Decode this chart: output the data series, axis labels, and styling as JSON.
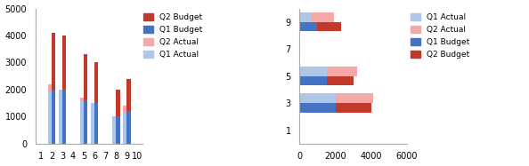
{
  "vertical": {
    "categories": [
      1,
      2,
      3,
      4,
      5,
      6,
      7,
      8,
      9,
      10
    ],
    "q1_actual": [
      0,
      1900,
      2000,
      0,
      1600,
      1500,
      0,
      1000,
      1100,
      0
    ],
    "q2_actual_top": [
      0,
      2200,
      2000,
      0,
      1700,
      1500,
      0,
      1000,
      1400,
      0
    ],
    "q1_budget": [
      0,
      2000,
      2000,
      0,
      1600,
      1500,
      0,
      1000,
      1200,
      0
    ],
    "q2_budget_top": [
      0,
      4100,
      4000,
      0,
      3300,
      3000,
      0,
      2000,
      2400,
      0
    ],
    "ylim": [
      0,
      5000
    ],
    "yticks": [
      0,
      1000,
      2000,
      3000,
      4000,
      5000
    ],
    "legend_order": [
      "Q2 Budget",
      "Q1 Budget",
      "Q2 Actual",
      "Q1 Actual"
    ]
  },
  "horizontal": {
    "categories": [
      1,
      3,
      5,
      7,
      9
    ],
    "q1_actual": [
      0,
      2000,
      1500,
      0,
      700
    ],
    "q2_actual_total": [
      0,
      4100,
      3200,
      0,
      1900
    ],
    "q1_budget": [
      0,
      2000,
      1500,
      0,
      1000
    ],
    "q2_budget_total": [
      0,
      4000,
      3000,
      0,
      2300
    ],
    "xlim": [
      0,
      6000
    ],
    "xticks": [
      0,
      2000,
      4000,
      6000
    ],
    "legend_order": [
      "Q1 Actual",
      "Q2 Actual",
      "Q1 Budget",
      "Q2 Budget"
    ]
  },
  "colors": {
    "q1_actual": "#aec6e8",
    "q2_actual": "#f4a9a8",
    "q1_budget": "#4472c4",
    "q2_budget": "#c0392b"
  },
  "bar_width": 0.35
}
